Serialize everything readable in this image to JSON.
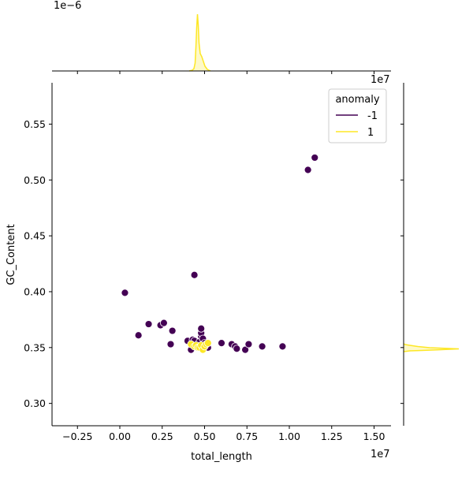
{
  "chart_data": {
    "type": "scatter",
    "xlabel": "total_length",
    "ylabel": "GC_Content",
    "x_offset_label": "1e7",
    "y_offset_label": "",
    "top_marginal_offset_label": "1e−6",
    "marginal_x_offset_label": "1e7",
    "xlim": [
      -0.4,
      1.6
    ],
    "ylim": [
      0.28,
      0.587
    ],
    "x_ticks": [
      -0.25,
      0.0,
      0.25,
      0.5,
      0.75,
      1.0,
      1.25,
      1.5
    ],
    "x_tick_labels": [
      "−0.25",
      "0.00",
      "0.25",
      "0.50",
      "0.75",
      "1.00",
      "1.25",
      "1.50"
    ],
    "y_ticks": [
      0.3,
      0.35,
      0.4,
      0.45,
      0.5,
      0.55
    ],
    "y_tick_labels": [
      "0.30",
      "0.35",
      "0.40",
      "0.45",
      "0.50",
      "0.55"
    ],
    "grid": false,
    "legend": {
      "title": "anomaly",
      "placement": "top-right",
      "entries": [
        {
          "label": "-1",
          "color": "#440154"
        },
        {
          "label": "1",
          "color": "#fde725"
        }
      ]
    },
    "series": [
      {
        "name": "-1",
        "color": "#440154",
        "points": [
          [
            0.03,
            0.399
          ],
          [
            0.11,
            0.361
          ],
          [
            0.17,
            0.371
          ],
          [
            0.24,
            0.37
          ],
          [
            0.26,
            0.372
          ],
          [
            0.3,
            0.353
          ],
          [
            0.31,
            0.365
          ],
          [
            0.4,
            0.356
          ],
          [
            0.42,
            0.348
          ],
          [
            0.43,
            0.357
          ],
          [
            0.44,
            0.356
          ],
          [
            0.44,
            0.415
          ],
          [
            0.47,
            0.355
          ],
          [
            0.48,
            0.36
          ],
          [
            0.48,
            0.363
          ],
          [
            0.48,
            0.367
          ],
          [
            0.49,
            0.358
          ],
          [
            0.5,
            0.354
          ],
          [
            0.51,
            0.352
          ],
          [
            0.52,
            0.35
          ],
          [
            0.6,
            0.354
          ],
          [
            0.66,
            0.353
          ],
          [
            0.68,
            0.351
          ],
          [
            0.69,
            0.349
          ],
          [
            0.74,
            0.348
          ],
          [
            0.76,
            0.353
          ],
          [
            0.84,
            0.351
          ],
          [
            0.96,
            0.351
          ],
          [
            1.11,
            0.509
          ],
          [
            1.15,
            0.52
          ]
        ]
      },
      {
        "name": "1",
        "color": "#fde725",
        "points": [
          [
            0.42,
            0.353
          ],
          [
            0.44,
            0.351
          ],
          [
            0.45,
            0.352
          ],
          [
            0.46,
            0.35
          ],
          [
            0.47,
            0.35
          ],
          [
            0.48,
            0.352
          ],
          [
            0.49,
            0.348
          ],
          [
            0.5,
            0.351
          ],
          [
            0.51,
            0.353
          ],
          [
            0.52,
            0.354
          ]
        ]
      }
    ]
  }
}
